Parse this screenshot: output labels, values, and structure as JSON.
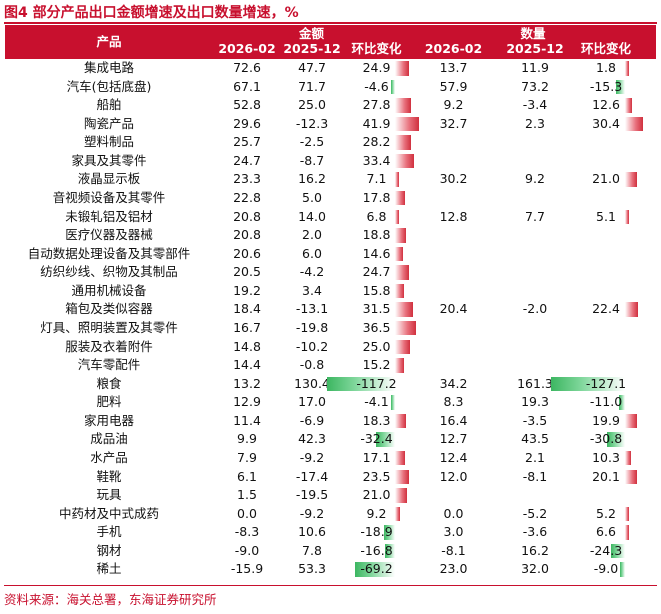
{
  "title": "图4  部分产品出口金额增速及出口数量增速，%",
  "source": "资料来源：海关总署，东海证券研究所",
  "colors": {
    "header": "#c8102e",
    "positive": "#d0303e",
    "negative": "#3cb661"
  },
  "chart_data": {
    "type": "table",
    "header": {
      "product": "产品",
      "group_amount": "金额",
      "group_quantity": "数量",
      "columns": [
        "2026-02",
        "2025-12",
        "环比变化",
        "2026-02",
        "2025-12",
        "环比变化"
      ]
    },
    "rows": [
      {
        "name": "集成电路",
        "a1": "72.6",
        "a2": "47.7",
        "ac": "24.9",
        "q1": "13.7",
        "q2": "11.9",
        "qc": "1.8"
      },
      {
        "name": "汽车(包括底盘)",
        "a1": "67.1",
        "a2": "71.7",
        "ac": "-4.6",
        "q1": "57.9",
        "q2": "73.2",
        "qc": "-15.3"
      },
      {
        "name": "船舶",
        "a1": "52.8",
        "a2": "25.0",
        "ac": "27.8",
        "q1": "9.2",
        "q2": "-3.4",
        "qc": "12.6"
      },
      {
        "name": "陶瓷产品",
        "a1": "29.6",
        "a2": "-12.3",
        "ac": "41.9",
        "q1": "32.7",
        "q2": "2.3",
        "qc": "30.4"
      },
      {
        "name": "塑料制品",
        "a1": "25.7",
        "a2": "-2.5",
        "ac": "28.2",
        "q1": "",
        "q2": "",
        "qc": ""
      },
      {
        "name": "家具及其零件",
        "a1": "24.7",
        "a2": "-8.7",
        "ac": "33.4",
        "q1": "",
        "q2": "",
        "qc": ""
      },
      {
        "name": "液晶显示板",
        "a1": "23.3",
        "a2": "16.2",
        "ac": "7.1",
        "q1": "30.2",
        "q2": "9.2",
        "qc": "21.0"
      },
      {
        "name": "音视频设备及其零件",
        "a1": "22.8",
        "a2": "5.0",
        "ac": "17.8",
        "q1": "",
        "q2": "",
        "qc": ""
      },
      {
        "name": "未锻轧铝及铝材",
        "a1": "20.8",
        "a2": "14.0",
        "ac": "6.8",
        "q1": "12.8",
        "q2": "7.7",
        "qc": "5.1"
      },
      {
        "name": "医疗仪器及器械",
        "a1": "20.8",
        "a2": "2.0",
        "ac": "18.8",
        "q1": "",
        "q2": "",
        "qc": ""
      },
      {
        "name": "自动数据处理设备及其零部件",
        "a1": "20.6",
        "a2": "6.0",
        "ac": "14.6",
        "q1": "",
        "q2": "",
        "qc": ""
      },
      {
        "name": "纺织纱线、织物及其制品",
        "a1": "20.5",
        "a2": "-4.2",
        "ac": "24.7",
        "q1": "",
        "q2": "",
        "qc": ""
      },
      {
        "name": "通用机械设备",
        "a1": "19.2",
        "a2": "3.4",
        "ac": "15.8",
        "q1": "",
        "q2": "",
        "qc": ""
      },
      {
        "name": "箱包及类似容器",
        "a1": "18.4",
        "a2": "-13.1",
        "ac": "31.5",
        "q1": "20.4",
        "q2": "-2.0",
        "qc": "22.4"
      },
      {
        "name": "灯具、照明装置及其零件",
        "a1": "16.7",
        "a2": "-19.8",
        "ac": "36.5",
        "q1": "",
        "q2": "",
        "qc": ""
      },
      {
        "name": "服装及衣着附件",
        "a1": "14.8",
        "a2": "-10.2",
        "ac": "25.0",
        "q1": "",
        "q2": "",
        "qc": ""
      },
      {
        "name": "汽车零配件",
        "a1": "14.4",
        "a2": "-0.8",
        "ac": "15.2",
        "q1": "",
        "q2": "",
        "qc": ""
      },
      {
        "name": "粮食",
        "a1": "13.2",
        "a2": "130.4",
        "ac": "-117.2",
        "q1": "34.2",
        "q2": "161.3",
        "qc": "-127.1"
      },
      {
        "name": "肥料",
        "a1": "12.9",
        "a2": "17.0",
        "ac": "-4.1",
        "q1": "8.3",
        "q2": "19.3",
        "qc": "-11.0"
      },
      {
        "name": "家用电器",
        "a1": "11.4",
        "a2": "-6.9",
        "ac": "18.3",
        "q1": "16.4",
        "q2": "-3.5",
        "qc": "19.9"
      },
      {
        "name": "成品油",
        "a1": "9.9",
        "a2": "42.3",
        "ac": "-32.4",
        "q1": "12.7",
        "q2": "43.5",
        "qc": "-30.8"
      },
      {
        "name": "水产品",
        "a1": "7.9",
        "a2": "-9.2",
        "ac": "17.1",
        "q1": "12.4",
        "q2": "2.1",
        "qc": "10.3"
      },
      {
        "name": "鞋靴",
        "a1": "6.1",
        "a2": "-17.4",
        "ac": "23.5",
        "q1": "12.0",
        "q2": "-8.1",
        "qc": "20.1"
      },
      {
        "name": "玩具",
        "a1": "1.5",
        "a2": "-19.5",
        "ac": "21.0",
        "q1": "",
        "q2": "",
        "qc": ""
      },
      {
        "name": "中药材及中式成药",
        "a1": "0.0",
        "a2": "-9.2",
        "ac": "9.2",
        "q1": "0.0",
        "q2": "-5.2",
        "qc": "5.2"
      },
      {
        "name": "手机",
        "a1": "-8.3",
        "a2": "10.6",
        "ac": "-18.9",
        "q1": "3.0",
        "q2": "-3.6",
        "qc": "6.6"
      },
      {
        "name": "钢材",
        "a1": "-9.0",
        "a2": "7.8",
        "ac": "-16.8",
        "q1": "-8.1",
        "q2": "16.2",
        "qc": "-24.3"
      },
      {
        "name": "稀土",
        "a1": "-15.9",
        "a2": "53.3",
        "ac": "-69.2",
        "q1": "23.0",
        "q2": "32.0",
        "qc": "-9.0"
      }
    ]
  }
}
